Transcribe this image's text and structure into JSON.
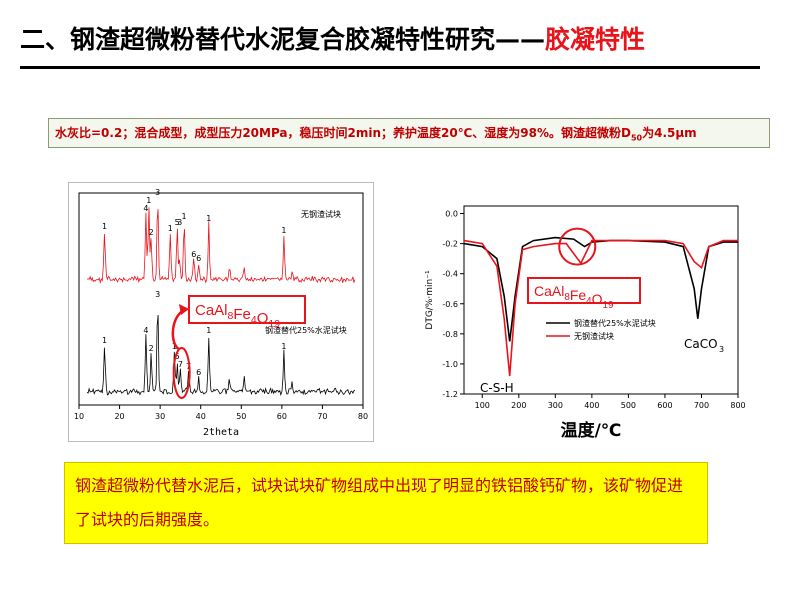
{
  "slide": {
    "title_main": "二、钢渣超微粉替代水泥复合胶凝特性研究——",
    "title_highlight": "胶凝特性",
    "conditions": {
      "prefix": "水灰比=0.2；混合成型，成型压力20MPa，稳压时间2min；养护温度20℃、湿度为98%。钢渣超微粉D",
      "subscript": "50",
      "suffix": "为4.5μm"
    },
    "conclusion": "钢渣超微粉代替水泥后，试块试块矿物组成中出现了明显的铁铝酸钙矿物，该矿物促进了试块的后期强度。"
  },
  "chart_data": [
    {
      "type": "line",
      "xlabel": "2theta",
      "xlim": [
        10,
        80
      ],
      "x_ticks": [
        "10",
        "20",
        "30",
        "40",
        "50",
        "60",
        "70",
        "80"
      ],
      "series": [
        {
          "name": "无钢渣试块",
          "color": "#e8141b"
        },
        {
          "name": "钢渣替代25%水泥试块",
          "color": "#000000"
        }
      ],
      "peak_labels_top": [
        {
          "x": 16.3,
          "label": "1"
        },
        {
          "x": 26.5,
          "label": "4"
        },
        {
          "x": 27.2,
          "label": "1"
        },
        {
          "x": 27.8,
          "label": "2"
        },
        {
          "x": 29.4,
          "label": "3"
        },
        {
          "x": 32.5,
          "label": "1"
        },
        {
          "x": 34.2,
          "label": "5"
        },
        {
          "x": 34.8,
          "label": "3"
        },
        {
          "x": 35.9,
          "label": "1"
        },
        {
          "x": 39.5,
          "label": "6"
        },
        {
          "x": 42.0,
          "label": "1"
        },
        {
          "x": 60.5,
          "label": "1"
        },
        {
          "x": 38.3,
          "label": "6"
        }
      ],
      "peak_labels_bottom": [
        {
          "x": 16.3,
          "label": "1"
        },
        {
          "x": 26.5,
          "label": "4"
        },
        {
          "x": 27.8,
          "label": "2"
        },
        {
          "x": 29.4,
          "label": "3"
        },
        {
          "x": 33.5,
          "label": "1"
        },
        {
          "x": 34.2,
          "label": "5"
        },
        {
          "x": 35.0,
          "label": "7"
        },
        {
          "x": 37.0,
          "label": "7"
        },
        {
          "x": 39.5,
          "label": "6"
        },
        {
          "x": 42.0,
          "label": "1"
        },
        {
          "x": 60.5,
          "label": "1"
        }
      ],
      "annotation": {
        "formula": "CaAl8Fe4O19"
      }
    },
    {
      "type": "line",
      "ylabel": "DTG/%·min⁻¹",
      "xlabel": "温度/℃",
      "xlim": [
        50,
        800
      ],
      "ylim": [
        -1.2,
        0.05
      ],
      "x_ticks": [
        "100",
        "200",
        "300",
        "400",
        "500",
        "600",
        "700",
        "800"
      ],
      "y_ticks": [
        "0.0",
        "-0.2",
        "-0.4",
        "-0.6",
        "-0.8",
        "-1.0",
        "-1.2"
      ],
      "series": [
        {
          "name": "钢渣替代25%水泥试块",
          "color": "#000000",
          "x": [
            50,
            100,
            140,
            160,
            175,
            190,
            210,
            240,
            300,
            350,
            380,
            400,
            450,
            500,
            600,
            650,
            680,
            690,
            700,
            720,
            760,
            800
          ],
          "y": [
            -0.2,
            -0.22,
            -0.3,
            -0.55,
            -0.85,
            -0.55,
            -0.22,
            -0.18,
            -0.16,
            -0.17,
            -0.22,
            -0.19,
            -0.18,
            -0.18,
            -0.19,
            -0.22,
            -0.5,
            -0.7,
            -0.5,
            -0.22,
            -0.19,
            -0.19
          ]
        },
        {
          "name": "无钢渣试块",
          "color": "#e8141b",
          "x": [
            50,
            100,
            140,
            160,
            175,
            190,
            210,
            240,
            300,
            330,
            370,
            400,
            450,
            500,
            600,
            650,
            680,
            700,
            720,
            760,
            800
          ],
          "y": [
            -0.18,
            -0.2,
            -0.35,
            -0.7,
            -1.08,
            -0.6,
            -0.24,
            -0.22,
            -0.2,
            -0.2,
            -0.33,
            -0.18,
            -0.18,
            -0.18,
            -0.18,
            -0.2,
            -0.32,
            -0.36,
            -0.22,
            -0.18,
            -0.18
          ]
        }
      ],
      "annotations": [
        {
          "text": "CaAl8Fe4O19"
        },
        {
          "text": "CaCO3"
        },
        {
          "text": "C-S-H"
        }
      ]
    }
  ]
}
